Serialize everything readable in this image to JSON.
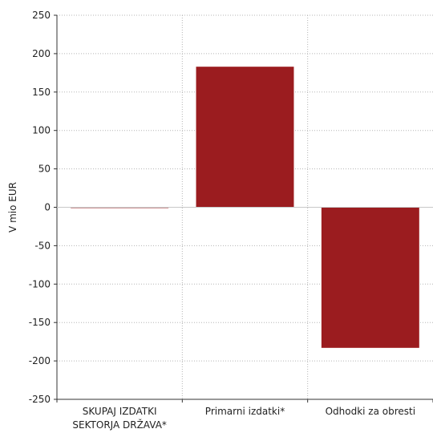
{
  "chart_data": {
    "type": "bar",
    "title": "",
    "xlabel": "",
    "ylabel": "V mio EUR",
    "ylim": [
      -250,
      250
    ],
    "yticks": [
      250,
      200,
      150,
      100,
      50,
      0,
      -50,
      -100,
      -150,
      -200,
      -250
    ],
    "grid": true,
    "categories": [
      [
        "SKUPAJ IZDATKI",
        "SEKTORJA DRŽAVA*"
      ],
      [
        "Primarni izdatki*"
      ],
      [
        "Odhodki za obresti"
      ]
    ],
    "series": [
      {
        "values": [
          -1,
          183,
          -183
        ],
        "color": "#9b1c1f"
      }
    ]
  }
}
